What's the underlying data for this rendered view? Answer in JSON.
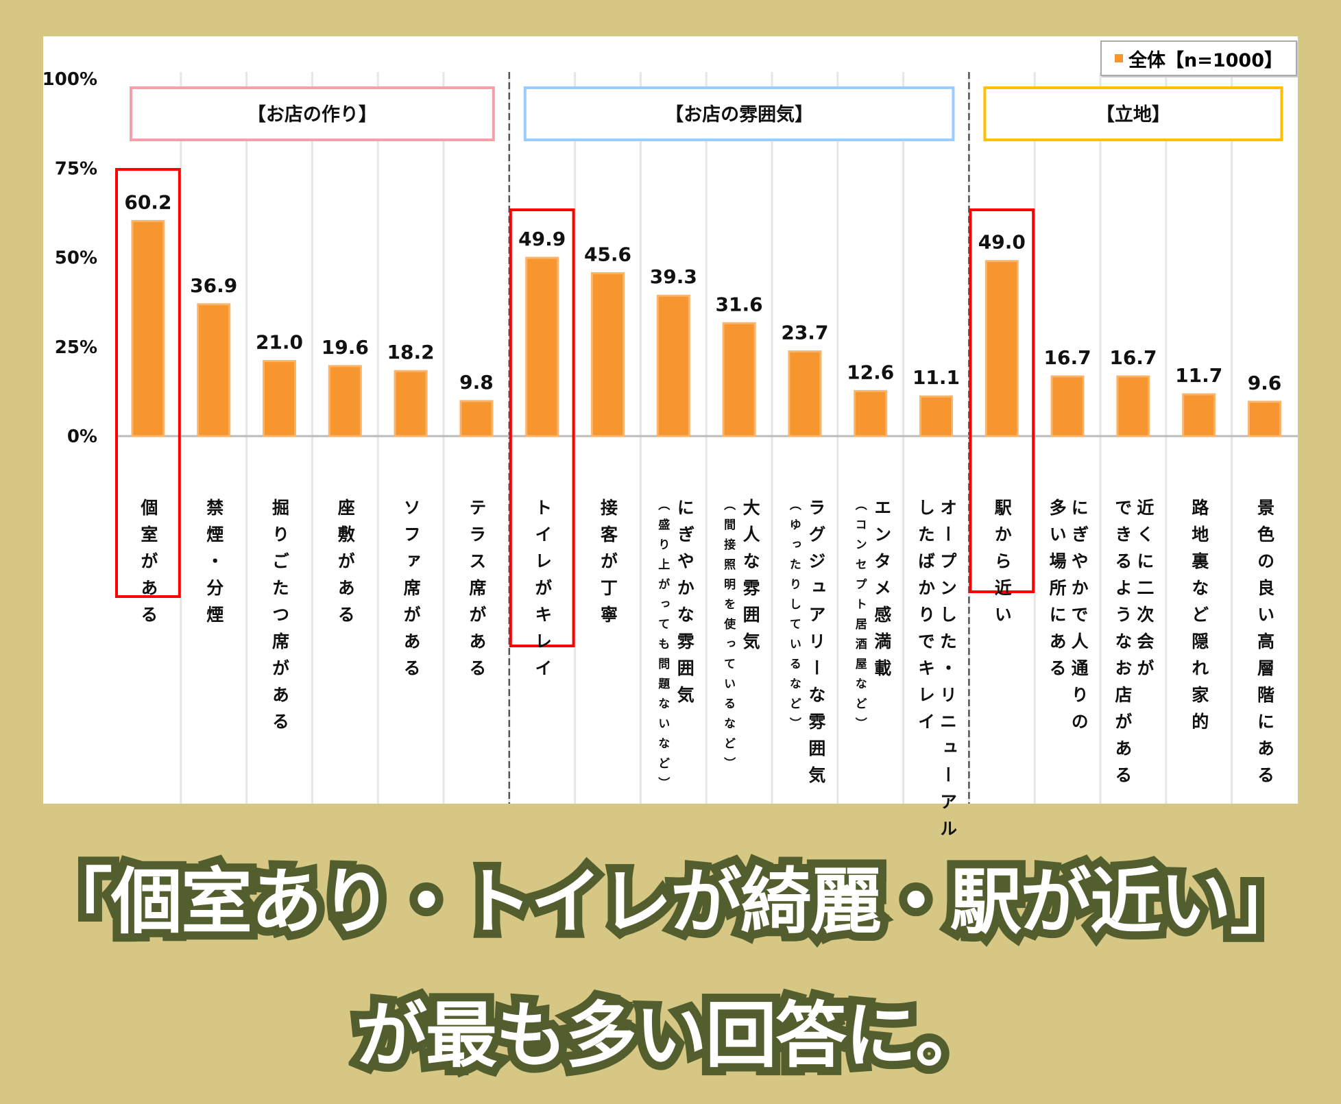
{
  "chart_data": {
    "type": "bar",
    "ylim": [
      0,
      100
    ],
    "yticks": [
      "0%",
      "25%",
      "50%",
      "75%",
      "100%"
    ],
    "legend": {
      "label": "全体【n=1000】",
      "placement": "top-right"
    },
    "grid": true,
    "bar_color": "#f7962f",
    "groups": [
      {
        "label": "【お店の作り】",
        "color": "#f4a0a8",
        "count": 6
      },
      {
        "label": "【お店の雰囲気】",
        "color": "#99ccff",
        "count": 7
      },
      {
        "label": "【立地】",
        "color": "#ffc000",
        "count": 5
      }
    ],
    "categories": [
      {
        "lines": [
          "個室がある"
        ]
      },
      {
        "lines": [
          "禁煙・分煙"
        ]
      },
      {
        "lines": [
          "掘りごたつ席がある"
        ]
      },
      {
        "lines": [
          "座敷がある"
        ]
      },
      {
        "lines": [
          "ソファ席がある"
        ]
      },
      {
        "lines": [
          "テラス席がある"
        ]
      },
      {
        "lines": [
          "トイレがキレイ"
        ]
      },
      {
        "lines": [
          "接客が丁寧"
        ]
      },
      {
        "lines": [
          "にぎやかな雰囲気"
        ],
        "sub": "（盛り上がっても問題ないなど）"
      },
      {
        "lines": [
          "大人な雰囲気"
        ],
        "sub": "（間接照明を使っているなど）"
      },
      {
        "lines": [
          "ラグジュアリーな雰囲気"
        ],
        "sub": "（ゆったりしているなど）"
      },
      {
        "lines": [
          "エンタメ感満載"
        ],
        "sub": "（コンセプト居酒屋など）"
      },
      {
        "lines": [
          "オープンした・リニューアル",
          "したばかりでキレイ"
        ]
      },
      {
        "lines": [
          "駅から近い"
        ]
      },
      {
        "lines": [
          "にぎやかで人通りの",
          "多い場所にある"
        ]
      },
      {
        "lines": [
          "近くに二次会が",
          "できるようなお店がある"
        ]
      },
      {
        "lines": [
          "路地裏など隠れ家的"
        ]
      },
      {
        "lines": [
          "景色の良い高層階にある"
        ]
      }
    ],
    "values": [
      60.2,
      36.9,
      21.0,
      19.6,
      18.2,
      9.8,
      49.9,
      45.6,
      39.3,
      31.6,
      23.7,
      12.6,
      11.1,
      49.0,
      16.7,
      16.7,
      11.7,
      9.6
    ],
    "highlighted": [
      0,
      6,
      13
    ],
    "highlight_color": "#ff0000"
  },
  "caption": {
    "line1": "「個室あり・トイレが綺麗・駅が近い」",
    "line2": "が最も多い回答に。"
  }
}
